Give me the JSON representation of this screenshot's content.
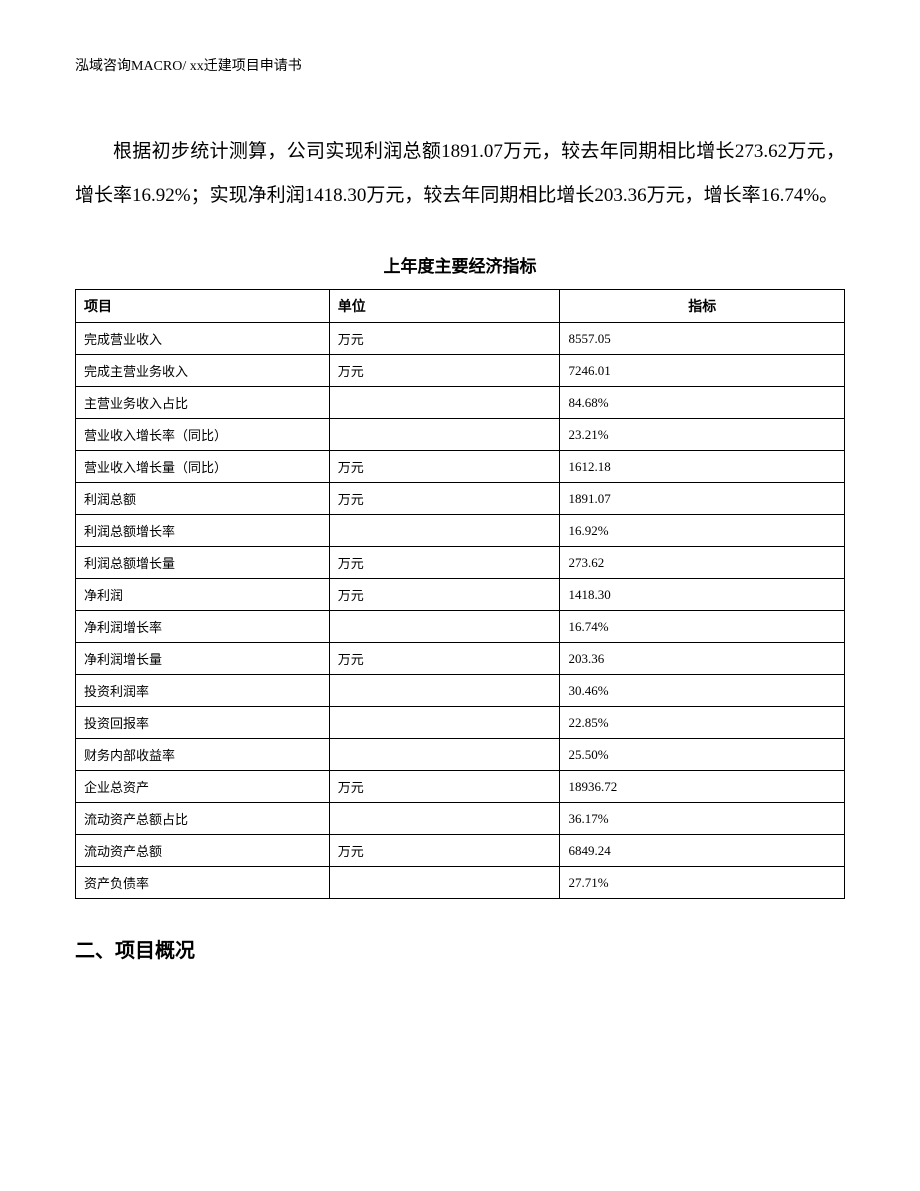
{
  "header": {
    "text": "泓域咨询MACRO/    xx迁建项目申请书"
  },
  "paragraph": {
    "text": "根据初步统计测算，公司实现利润总额1891.07万元，较去年同期相比增长273.62万元，增长率16.92%；实现净利润1418.30万元，较去年同期相比增长203.36万元，增长率16.74%。"
  },
  "table": {
    "title": "上年度主要经济指标",
    "columns": [
      "项目",
      "单位",
      "指标"
    ],
    "rows": [
      [
        "完成营业收入",
        "万元",
        "8557.05"
      ],
      [
        "完成主营业务收入",
        "万元",
        "7246.01"
      ],
      [
        "主营业务收入占比",
        "",
        "84.68%"
      ],
      [
        "营业收入增长率（同比）",
        "",
        "23.21%"
      ],
      [
        "营业收入增长量（同比）",
        "万元",
        "1612.18"
      ],
      [
        "利润总额",
        "万元",
        "1891.07"
      ],
      [
        "利润总额增长率",
        "",
        "16.92%"
      ],
      [
        "利润总额增长量",
        "万元",
        "273.62"
      ],
      [
        "净利润",
        "万元",
        "1418.30"
      ],
      [
        "净利润增长率",
        "",
        "16.74%"
      ],
      [
        "净利润增长量",
        "万元",
        "203.36"
      ],
      [
        "投资利润率",
        "",
        "30.46%"
      ],
      [
        "投资回报率",
        "",
        "22.85%"
      ],
      [
        "财务内部收益率",
        "",
        "25.50%"
      ],
      [
        "企业总资产",
        "万元",
        "18936.72"
      ],
      [
        "流动资产总额占比",
        "",
        "36.17%"
      ],
      [
        "流动资产总额",
        "万元",
        "6849.24"
      ],
      [
        "资产负债率",
        "",
        "27.71%"
      ]
    ]
  },
  "section": {
    "title": "二、项目概况"
  }
}
